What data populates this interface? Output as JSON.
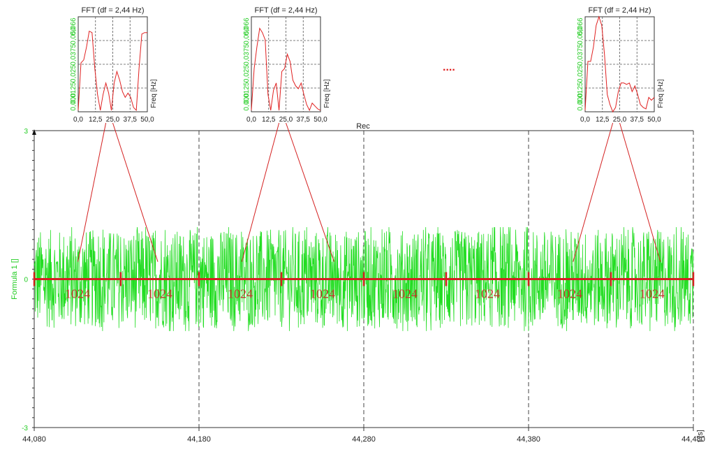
{
  "chart_data": [
    {
      "type": "line",
      "title": "Rec",
      "ylabel": "Formula 1 []",
      "xlabel": "t [s]",
      "xlim": [
        44.08,
        44.48
      ],
      "ylim": [
        -3,
        3
      ],
      "ytick_labels": [
        "3",
        "0",
        "-3"
      ],
      "yticks": [
        3,
        0,
        -3
      ],
      "xtick_labels": [
        "44,080",
        "44,180",
        "44,280",
        "44,380",
        "44,480"
      ],
      "xticks": [
        44.08,
        44.18,
        44.28,
        44.38,
        44.48
      ],
      "grid": "vertical dashed",
      "series": [
        {
          "color": "#22dd22",
          "style": "noise",
          "amplitude": 1.0
        }
      ],
      "blocks": {
        "color": "#d42020",
        "label": "1024",
        "boundaries": [
          44.08,
          44.1325,
          44.18,
          44.23,
          44.28,
          44.33,
          44.38,
          44.43,
          44.48
        ],
        "count": 8
      }
    },
    {
      "type": "line",
      "title": "FFT (df = 2,44 Hz)",
      "xlabel": "Freq [Hz]",
      "ytick_labels": [
        "0,000",
        "0,0125",
        "0,025",
        "0,0375",
        "0,050",
        "0,066"
      ],
      "xtick_labels": [
        "0,0",
        "12,5",
        "25,0",
        "37,5",
        "50,0"
      ],
      "xlim": [
        0,
        50
      ],
      "ylim": [
        0,
        0.066
      ],
      "grid": true,
      "series": [
        {
          "color": "#e02020",
          "x": [
            0,
            2,
            4,
            6,
            8,
            10,
            12,
            14,
            16,
            18,
            20,
            22,
            24,
            26,
            28,
            30,
            32,
            34,
            36,
            38,
            40,
            42,
            44,
            46,
            48,
            50
          ],
          "y": [
            0.001,
            0.034,
            0.036,
            0.045,
            0.056,
            0.055,
            0.03,
            0.012,
            0.001,
            0.012,
            0.02,
            0.013,
            0.001,
            0.02,
            0.028,
            0.022,
            0.014,
            0.01,
            0.013,
            0.01,
            0.003,
            0.001,
            0.03,
            0.054,
            0.055,
            0.055
          ]
        }
      ]
    },
    {
      "type": "line",
      "title": "FFT (df = 2,44 Hz)",
      "xlabel": "Freq [Hz]",
      "ytick_labels": [
        "0,000",
        "0,0125",
        "0,025",
        "0,0375",
        "0,050",
        "0,066"
      ],
      "xtick_labels": [
        "0,0",
        "12,5",
        "25,0",
        "37,5",
        "50,0"
      ],
      "xlim": [
        0,
        50
      ],
      "ylim": [
        0,
        0.066
      ],
      "grid": true,
      "series": [
        {
          "color": "#e02020",
          "x": [
            0,
            2,
            4,
            6,
            8,
            10,
            12,
            14,
            16,
            18,
            20,
            22,
            24,
            26,
            28,
            30,
            32,
            34,
            36,
            38,
            40,
            42,
            44,
            46,
            48,
            50
          ],
          "y": [
            0.001,
            0.03,
            0.045,
            0.058,
            0.055,
            0.05,
            0.012,
            0.001,
            0.015,
            0.02,
            0.001,
            0.028,
            0.03,
            0.04,
            0.035,
            0.022,
            0.018,
            0.016,
            0.02,
            0.012,
            0.005,
            0.001,
            0.006,
            0.004,
            0.002,
            0.001
          ]
        }
      ]
    },
    {
      "type": "line",
      "title": "FFT (df = 2,44 Hz)",
      "xlabel": "Freq [Hz]",
      "ytick_labels": [
        "0,000",
        "0,0125",
        "0,025",
        "0,0375",
        "0,050",
        "0,066"
      ],
      "xtick_labels": [
        "0,0",
        "12,5",
        "25,0",
        "37,5",
        "50,0"
      ],
      "xlim": [
        0,
        50
      ],
      "ylim": [
        0,
        0.066
      ],
      "grid": true,
      "series": [
        {
          "color": "#e02020",
          "x": [
            0,
            2,
            4,
            6,
            8,
            10,
            12,
            14,
            16,
            18,
            20,
            22,
            24,
            26,
            28,
            30,
            32,
            34,
            36,
            38,
            40,
            42,
            44,
            46,
            48,
            50
          ],
          "y": [
            0.001,
            0.035,
            0.035,
            0.045,
            0.06,
            0.066,
            0.06,
            0.04,
            0.012,
            0.005,
            0.0,
            0.003,
            0.014,
            0.02,
            0.02,
            0.019,
            0.02,
            0.014,
            0.018,
            0.012,
            0.005,
            0.003,
            0.002,
            0.01,
            0.008,
            0.01
          ]
        }
      ]
    }
  ],
  "ellipsis": "....",
  "colors": {
    "signal": "#22dd22",
    "marker": "#d42020",
    "grid": "#444444",
    "axis": "#333333"
  }
}
